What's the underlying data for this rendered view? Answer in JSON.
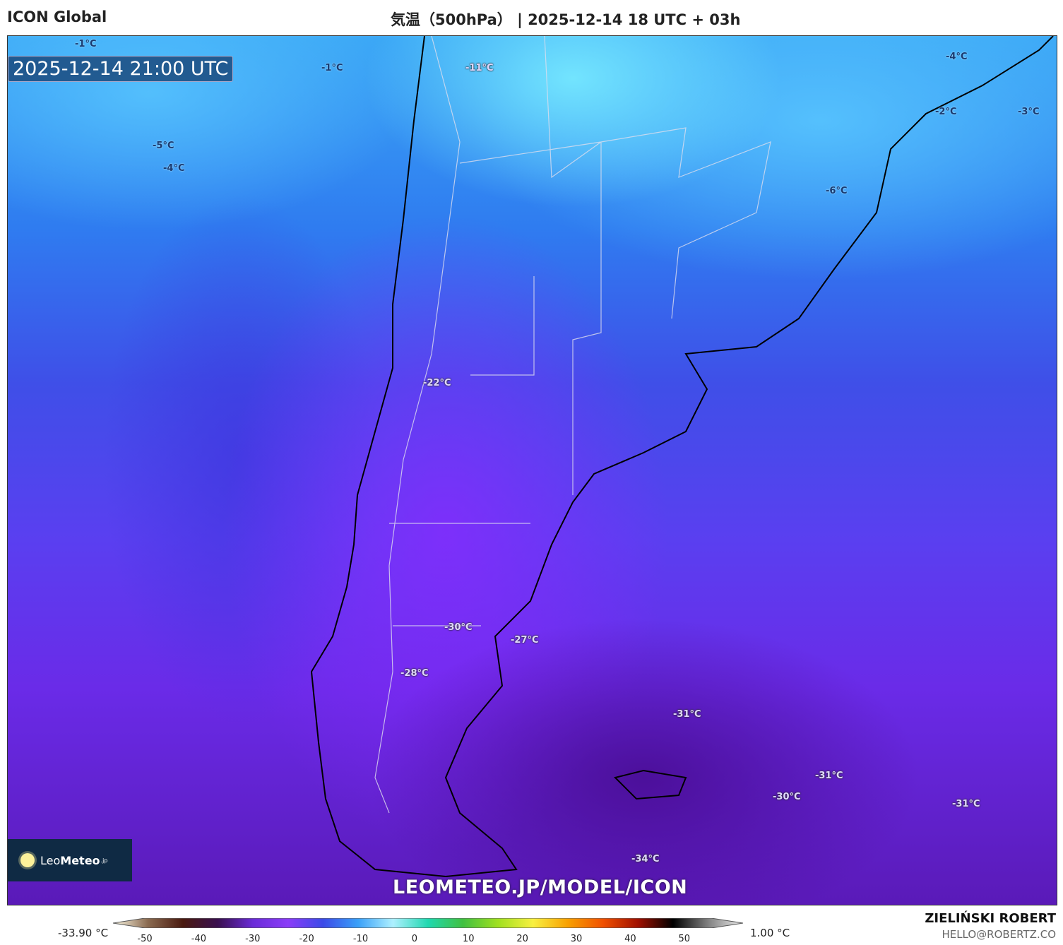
{
  "header": {
    "model": "ICON Global",
    "title": "気温（500hPa） | 2025-12-14 18 UTC + 03h"
  },
  "map": {
    "valid_time": "2025-12-14 21:00 UTC",
    "labels": [
      "-1°C",
      "-1°C",
      "-11°C",
      "-4°C",
      "-5°C",
      "-4°C",
      "-2°C",
      "-3°C",
      "-6°C",
      "-22°C",
      "-30°C",
      "-27°C",
      "-28°C",
      "-31°C",
      "-31°C",
      "-30°C",
      "-31°C",
      "-34°C"
    ],
    "watermark": "LEOMETEO.JP/MODEL/ICON",
    "logo": {
      "leo": "Leo",
      "meteo": "Meteo",
      "jp": ".jp"
    }
  },
  "colorbar": {
    "min_label": "-33.90 °C",
    "max_label": "1.00 °C",
    "ticks": [
      "-50",
      "-40",
      "-30",
      "-20",
      "-10",
      "0",
      "10",
      "20",
      "30",
      "40",
      "50"
    ],
    "range": [
      -50,
      55
    ],
    "colors": [
      "#fffbe6",
      "#8a6a50",
      "#4a1a10",
      "#3a1050",
      "#6a2bd8",
      "#8a3cf8",
      "#3b4ae8",
      "#3aa0f8",
      "#aef0ff",
      "#20d8b0",
      "#40c040",
      "#a0e020",
      "#f8f040",
      "#f8a000",
      "#f05000",
      "#a01000",
      "#000000",
      "#808080",
      "#f0f0f0"
    ]
  },
  "credits": {
    "author": "ZIELIŃSKI ROBERT",
    "email": "HELLO@ROBERTZ.CO"
  }
}
